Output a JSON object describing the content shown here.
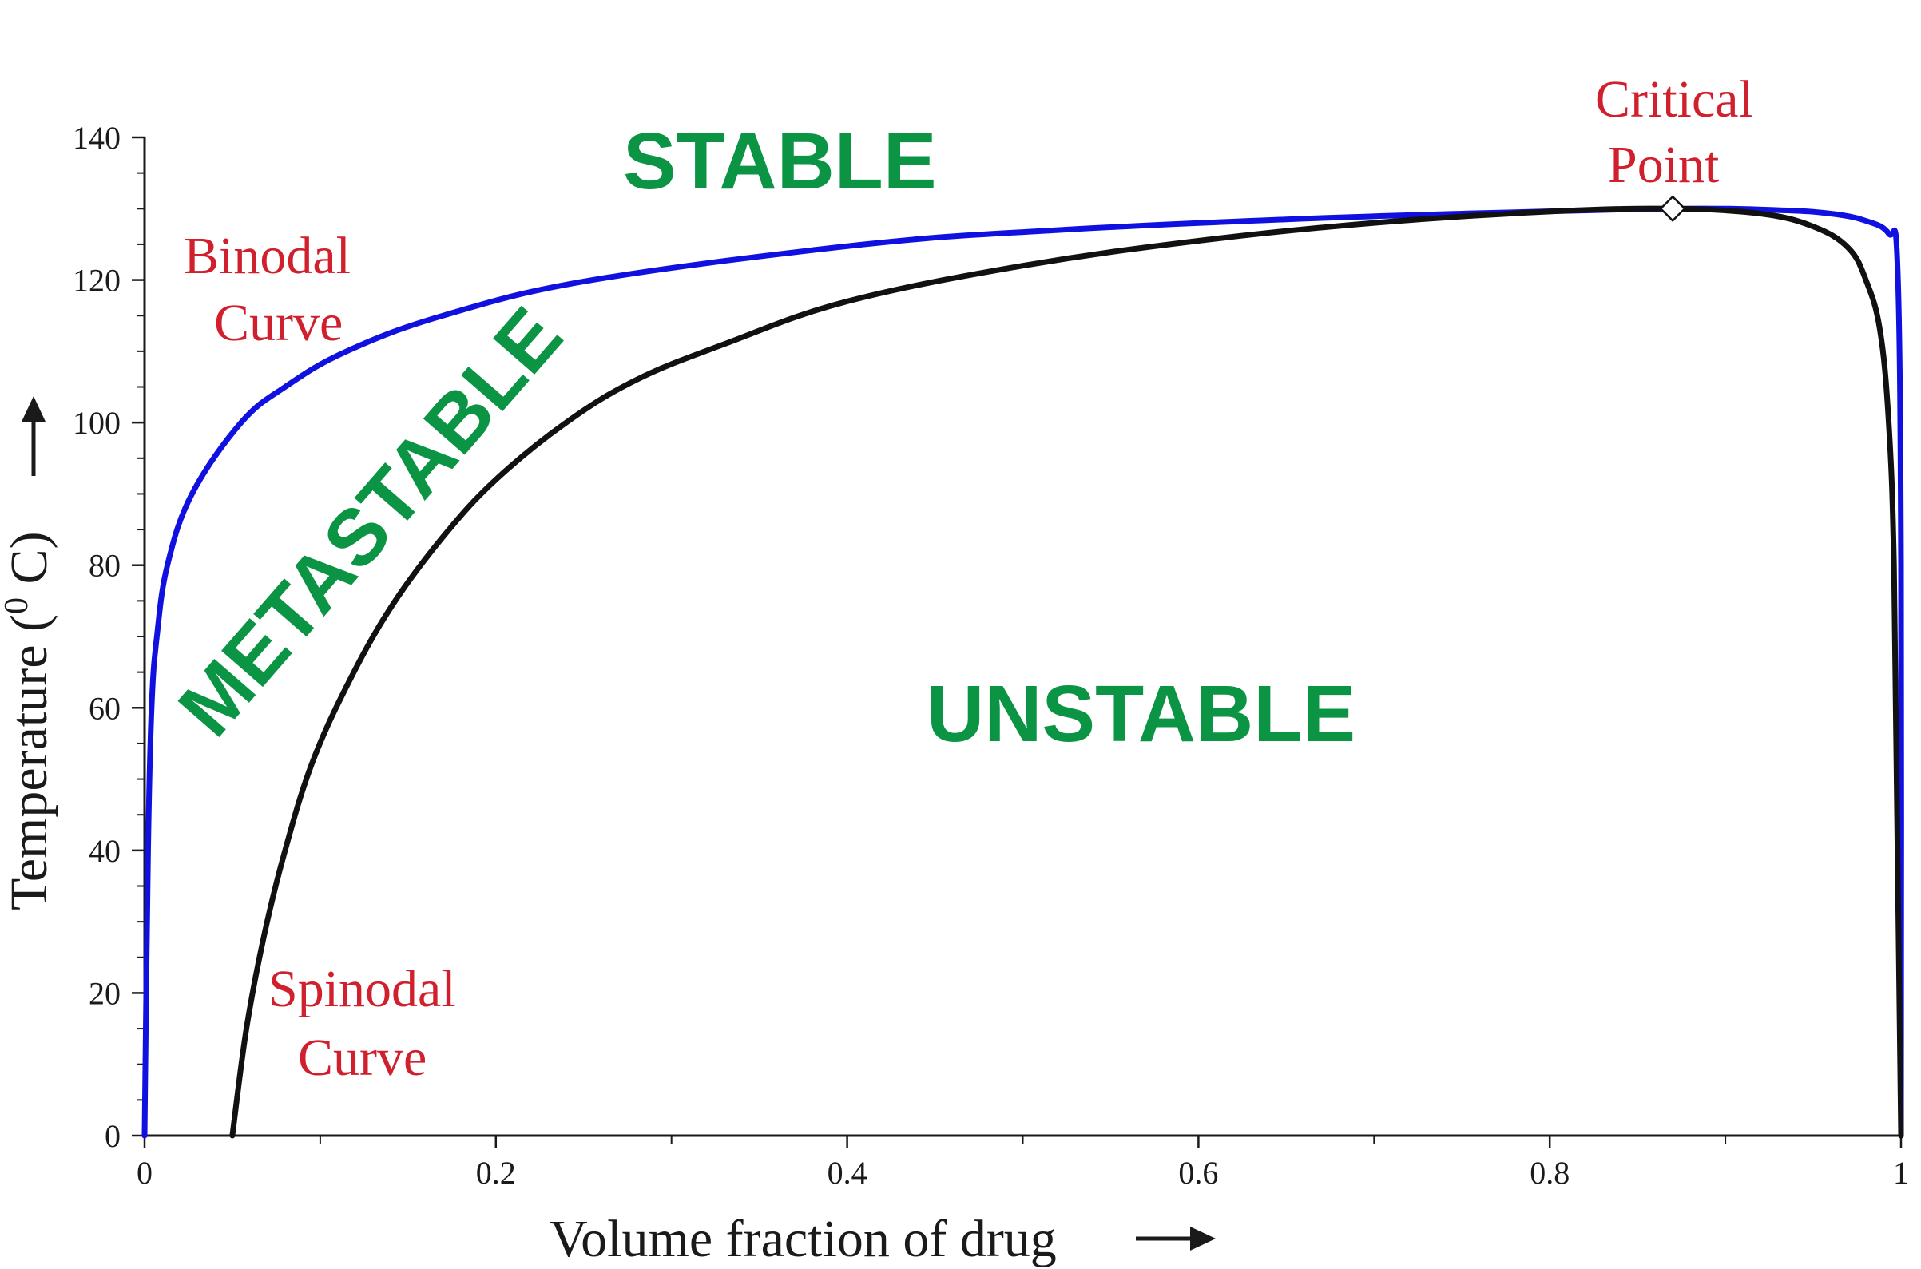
{
  "chart_data": {
    "type": "line",
    "title": "",
    "xlabel": "Volume fraction of drug",
    "ylabel": "Temperature (0 C)",
    "ylabel_parts": {
      "before": "Temperature (",
      "superscript": "0",
      "after": " C)"
    },
    "xlim": [
      0,
      1
    ],
    "ylim": [
      0,
      140
    ],
    "x_ticks": [
      0,
      0.2,
      0.4,
      0.6,
      0.8,
      1
    ],
    "x_tick_labels": [
      "0",
      "0.2",
      "0.4",
      "0.6",
      "0.8",
      "1"
    ],
    "y_ticks": [
      0,
      20,
      40,
      60,
      80,
      100,
      120,
      140
    ],
    "y_tick_labels": [
      "0",
      "20",
      "40",
      "60",
      "80",
      "100",
      "120",
      "140"
    ],
    "grid": false,
    "series": [
      {
        "name": "Binodal Curve",
        "color": "#1010e0",
        "x": [
          0.0,
          0.002,
          0.004,
          0.007,
          0.013,
          0.027,
          0.055,
          0.08,
          0.115,
          0.17,
          0.255,
          0.41,
          0.52,
          0.65,
          0.75,
          0.87,
          0.93,
          0.96,
          0.98,
          0.993,
          0.998,
          1.0,
          1.0
        ],
        "y": [
          0,
          40,
          60,
          70,
          80,
          90,
          100,
          105,
          110,
          115,
          120,
          125,
          127,
          128.5,
          129.3,
          130,
          129.8,
          129.3,
          128.3,
          126.5,
          122,
          80,
          0
        ]
      },
      {
        "name": "Spinodal Curve",
        "color": "#111111",
        "x": [
          0.05,
          0.058,
          0.068,
          0.08,
          0.095,
          0.115,
          0.14,
          0.17,
          0.2,
          0.24,
          0.28,
          0.33,
          0.4,
          0.5,
          0.6,
          0.7,
          0.8,
          0.87,
          0.92,
          0.95,
          0.97,
          0.98,
          0.988,
          0.993,
          0.996,
          0.998,
          1.0
        ],
        "y": [
          0,
          15,
          28,
          40,
          52,
          63,
          74,
          84,
          92,
          100,
          106,
          111,
          117,
          122,
          125.5,
          128,
          129.6,
          130,
          129.3,
          127.5,
          124.5,
          120,
          113,
          100,
          80,
          40,
          0
        ]
      }
    ],
    "critical_point": {
      "x": 0.87,
      "y": 130
    },
    "annotations": {
      "binodal": [
        "Binodal",
        "Curve"
      ],
      "spinodal": [
        "Spinodal",
        "Curve"
      ],
      "critical": [
        "Critical",
        "Point"
      ],
      "stable": "STABLE",
      "metastable": "METASTABLE",
      "unstable": "UNSTABLE"
    }
  }
}
